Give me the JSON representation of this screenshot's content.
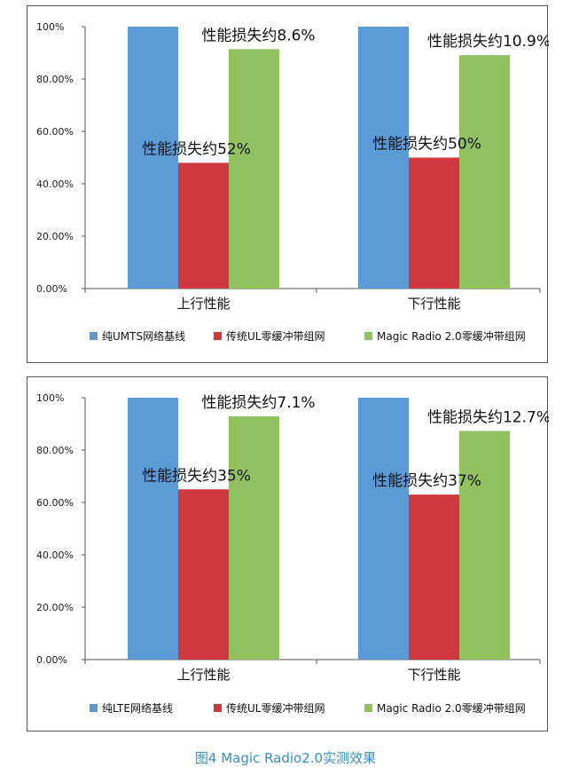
{
  "figure": {
    "caption": "图4  Magic Radio2.0实测效果"
  },
  "colors": {
    "blue": "#5b9bd5",
    "red": "#d1373f",
    "green": "#92c160",
    "axis": "#555555"
  },
  "chart_data": [
    {
      "type": "bar",
      "categories": [
        "上行性能",
        "下行性能"
      ],
      "yticks": [
        "0.00%",
        "20.00%",
        "40.00%",
        "60.00%",
        "80.00%",
        "100%"
      ],
      "ylim": [
        0,
        100
      ],
      "series": [
        {
          "name": "纯UMTS网络基线",
          "values": [
            100,
            100
          ]
        },
        {
          "name": "传统UL零缓冲带组网",
          "values": [
            48,
            50
          ]
        },
        {
          "name": "Magic Radio 2.0零缓冲带组网",
          "values": [
            91.4,
            89.1
          ]
        }
      ],
      "annotations": [
        {
          "text": "性能损失约8.6%",
          "category": 0,
          "series": 2
        },
        {
          "text": "性能损失约52%",
          "category": 0,
          "series": 1
        },
        {
          "text": "性能损失约10.9%",
          "category": 1,
          "series": 2
        },
        {
          "text": "性能损失约50%",
          "category": 1,
          "series": 1
        }
      ],
      "legend_position": "bottom"
    },
    {
      "type": "bar",
      "categories": [
        "上行性能",
        "下行性能"
      ],
      "yticks": [
        "0.00%",
        "20.00%",
        "40.00%",
        "60.00%",
        "80.00%",
        "100%"
      ],
      "ylim": [
        0,
        100
      ],
      "series": [
        {
          "name": "纯LTE网络基线",
          "values": [
            100,
            100
          ]
        },
        {
          "name": "传统UL零缓冲带组网",
          "values": [
            65,
            63
          ]
        },
        {
          "name": "Magic Radio 2.0零缓冲带组网",
          "values": [
            92.9,
            87.3
          ]
        }
      ],
      "annotations": [
        {
          "text": "性能损失约7.1%",
          "category": 0,
          "series": 2
        },
        {
          "text": "性能损失约35%",
          "category": 0,
          "series": 1
        },
        {
          "text": "性能损失约12.7%",
          "category": 1,
          "series": 2
        },
        {
          "text": "性能损失约37%",
          "category": 1,
          "series": 1
        }
      ],
      "legend_position": "bottom"
    }
  ]
}
